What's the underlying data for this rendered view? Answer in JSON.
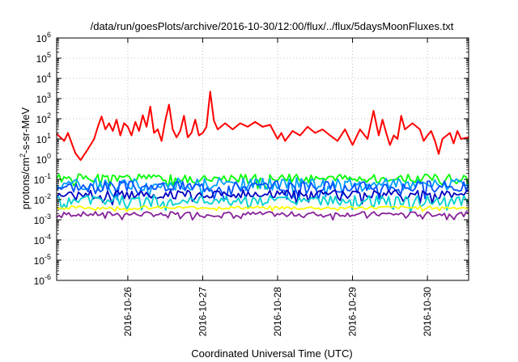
{
  "chart_data": {
    "type": "line",
    "title": "/data/run/goesPlots/archive/2016-10-30/12:00/flux/../flux/5daysMoonFluxes.txt",
    "xlabel": "Coordinated Universal Time (UTC)",
    "ylabel": {
      "base": "protons/cm",
      "sup": "2",
      "rest": "-s-sr-MeV"
    },
    "y_scale": "log",
    "x_range_days": [
      25.05,
      30.55
    ],
    "ylim_exponents": [
      -6,
      6
    ],
    "y_tick_labels": [
      {
        "exp": 6,
        "base": "10",
        "sup": "6"
      },
      {
        "exp": 5,
        "base": "10",
        "sup": "5"
      },
      {
        "exp": 4,
        "base": "10",
        "sup": "4"
      },
      {
        "exp": 3,
        "base": "10",
        "sup": "3"
      },
      {
        "exp": 2,
        "base": "10",
        "sup": "2"
      },
      {
        "exp": 1,
        "base": "10",
        "sup": "1"
      },
      {
        "exp": 0,
        "base": "10",
        "sup": "0"
      },
      {
        "exp": -1,
        "base": "10",
        "sup": "-1"
      },
      {
        "exp": -2,
        "base": "10",
        "sup": "-2"
      },
      {
        "exp": -3,
        "base": "10",
        "sup": "-3"
      },
      {
        "exp": -4,
        "base": "10",
        "sup": "-4"
      },
      {
        "exp": -5,
        "base": "10",
        "sup": "-5"
      },
      {
        "exp": -6,
        "base": "10",
        "sup": "-6"
      }
    ],
    "x_ticks": [
      {
        "day": 26,
        "label": "2016-10-26"
      },
      {
        "day": 27,
        "label": "2016-10-27"
      },
      {
        "day": 28,
        "label": "2016-10-28"
      },
      {
        "day": 29,
        "label": "2016-10-29"
      },
      {
        "day": 30,
        "label": "2016-10-30"
      }
    ],
    "grid": true,
    "legend": "none",
    "series": [
      {
        "color": "#ff0000",
        "pts": [
          [
            25.05,
            18
          ],
          [
            25.15,
            8
          ],
          [
            25.2,
            20
          ],
          [
            25.3,
            2
          ],
          [
            25.37,
            0.9
          ],
          [
            25.45,
            2.5
          ],
          [
            25.55,
            10
          ],
          [
            25.6,
            40
          ],
          [
            25.65,
            130
          ],
          [
            25.7,
            30
          ],
          [
            25.75,
            60
          ],
          [
            25.8,
            25
          ],
          [
            25.85,
            90
          ],
          [
            25.9,
            15
          ],
          [
            25.95,
            60
          ],
          [
            26.0,
            40
          ],
          [
            26.05,
            15
          ],
          [
            26.1,
            70
          ],
          [
            26.15,
            25
          ],
          [
            26.2,
            150
          ],
          [
            26.25,
            40
          ],
          [
            26.3,
            400
          ],
          [
            26.35,
            20
          ],
          [
            26.4,
            30
          ],
          [
            26.45,
            8
          ],
          [
            26.5,
            80
          ],
          [
            26.55,
            500
          ],
          [
            26.6,
            30
          ],
          [
            26.65,
            12
          ],
          [
            26.7,
            25
          ],
          [
            26.75,
            140
          ],
          [
            26.8,
            12
          ],
          [
            26.85,
            20
          ],
          [
            26.9,
            90
          ],
          [
            26.95,
            15
          ],
          [
            27.0,
            20
          ],
          [
            27.05,
            40
          ],
          [
            27.1,
            2200
          ],
          [
            27.15,
            80
          ],
          [
            27.2,
            30
          ],
          [
            27.3,
            60
          ],
          [
            27.4,
            30
          ],
          [
            27.5,
            60
          ],
          [
            27.6,
            40
          ],
          [
            27.7,
            70
          ],
          [
            27.8,
            40
          ],
          [
            27.9,
            50
          ],
          [
            28.0,
            10
          ],
          [
            28.05,
            20
          ],
          [
            28.1,
            8
          ],
          [
            28.2,
            25
          ],
          [
            28.3,
            15
          ],
          [
            28.4,
            40
          ],
          [
            28.5,
            20
          ],
          [
            28.6,
            30
          ],
          [
            28.7,
            15
          ],
          [
            28.8,
            8
          ],
          [
            28.9,
            30
          ],
          [
            29.0,
            5
          ],
          [
            29.1,
            30
          ],
          [
            29.2,
            10
          ],
          [
            29.28,
            250
          ],
          [
            29.35,
            15
          ],
          [
            29.4,
            90
          ],
          [
            29.45,
            20
          ],
          [
            29.5,
            5
          ],
          [
            29.55,
            15
          ],
          [
            29.6,
            10
          ],
          [
            29.65,
            140
          ],
          [
            29.7,
            30
          ],
          [
            29.8,
            60
          ],
          [
            29.9,
            30
          ],
          [
            29.95,
            8
          ],
          [
            30.0,
            15
          ],
          [
            30.05,
            25
          ],
          [
            30.1,
            8
          ],
          [
            30.15,
            1.8
          ],
          [
            30.2,
            10
          ],
          [
            30.3,
            20
          ],
          [
            30.35,
            6
          ],
          [
            30.4,
            25
          ],
          [
            30.45,
            10
          ],
          [
            30.55,
            12
          ]
        ]
      },
      {
        "color": "#00ff00",
        "base": 0.11,
        "amp": 0.22,
        "seed": 1
      },
      {
        "color": "#00a0ff",
        "base": 0.06,
        "amp": 0.3,
        "seed": 2
      },
      {
        "color": "#0050ff",
        "base": 0.045,
        "amp": 0.28,
        "seed": 3
      },
      {
        "color": "#0000c0",
        "base": 0.018,
        "amp": 0.22,
        "seed": 4
      },
      {
        "color": "#00d0d0",
        "base": 0.009,
        "amp": 0.25,
        "seed": 5
      },
      {
        "color": "#ffff00",
        "base": 0.004,
        "amp": 0.08,
        "seed": 6
      },
      {
        "color": "#882299",
        "base": 0.0019,
        "amp": 0.12,
        "seed": 7
      }
    ]
  }
}
